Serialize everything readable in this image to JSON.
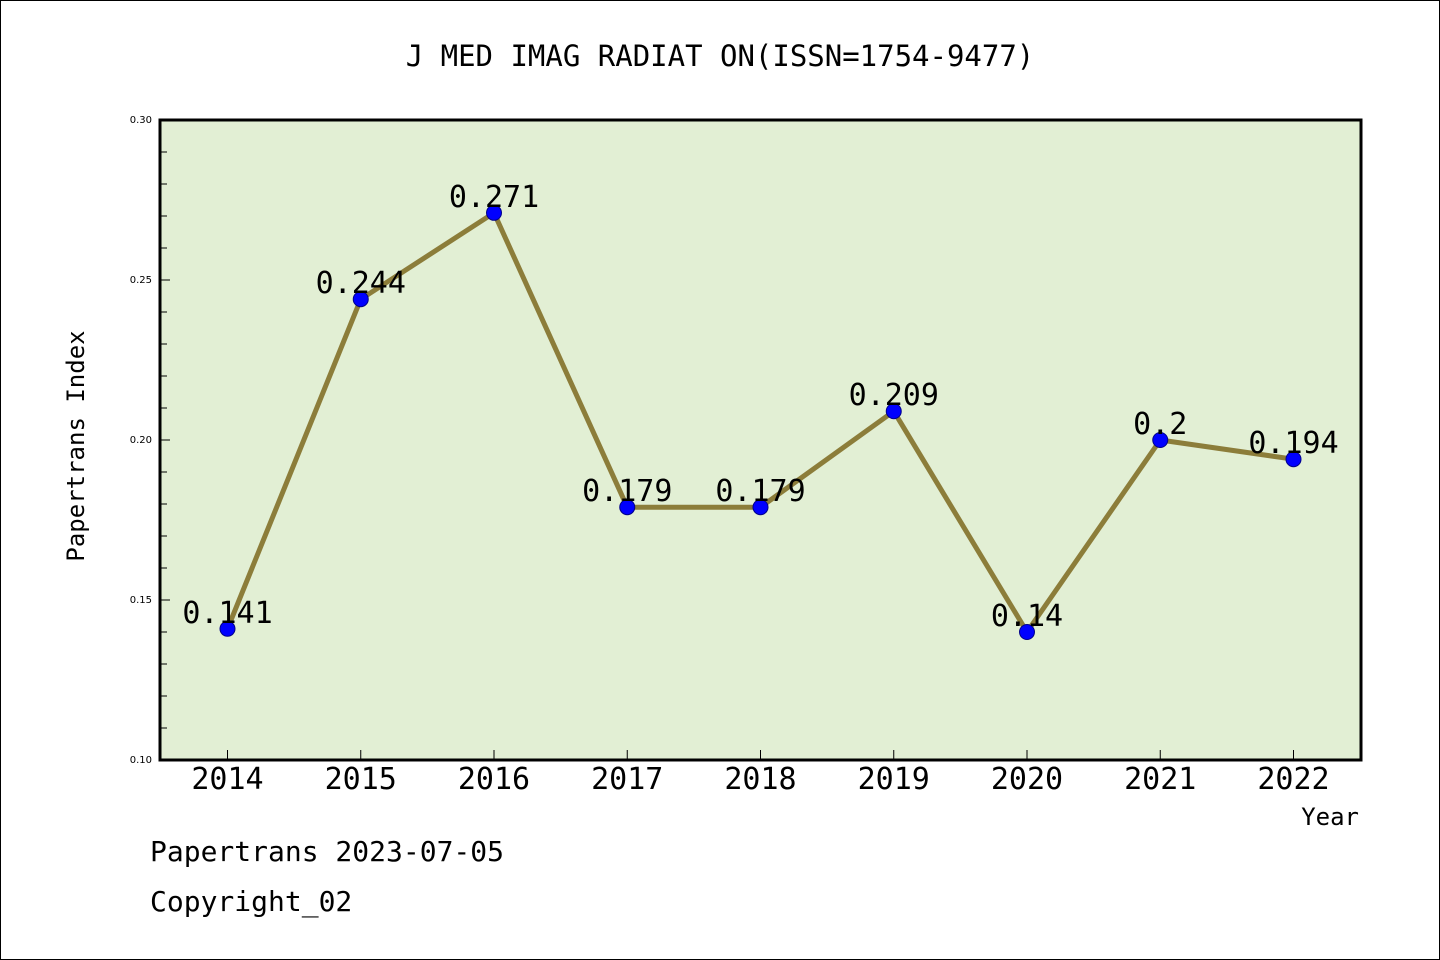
{
  "chart_data": {
    "type": "line",
    "title": "J MED IMAG RADIAT ON(ISSN=1754-9477)",
    "xlabel": "Year",
    "ylabel": "Papertrans Index",
    "categories": [
      "2014",
      "2015",
      "2016",
      "2017",
      "2018",
      "2019",
      "2020",
      "2021",
      "2022"
    ],
    "series": [
      {
        "values": [
          0.141,
          0.244,
          0.271,
          0.179,
          0.179,
          0.209,
          0.14,
          0.2,
          0.194
        ],
        "labels": [
          "0.141",
          "0.244",
          "0.271",
          "0.179",
          "0.179",
          "0.209",
          "0.14",
          "0.2",
          "0.194"
        ]
      }
    ],
    "ylim": [
      0.1,
      0.3
    ],
    "yticks": [
      "0.10",
      "0.15",
      "0.20",
      "0.25",
      "0.30"
    ],
    "grid": false,
    "colors": {
      "plot_background": "#e2efd4",
      "line": "#8c7d3a",
      "marker": "#0000ff"
    }
  },
  "footer": {
    "line1": "Papertrans 2023-07-05",
    "line2": "Copyright_02"
  }
}
